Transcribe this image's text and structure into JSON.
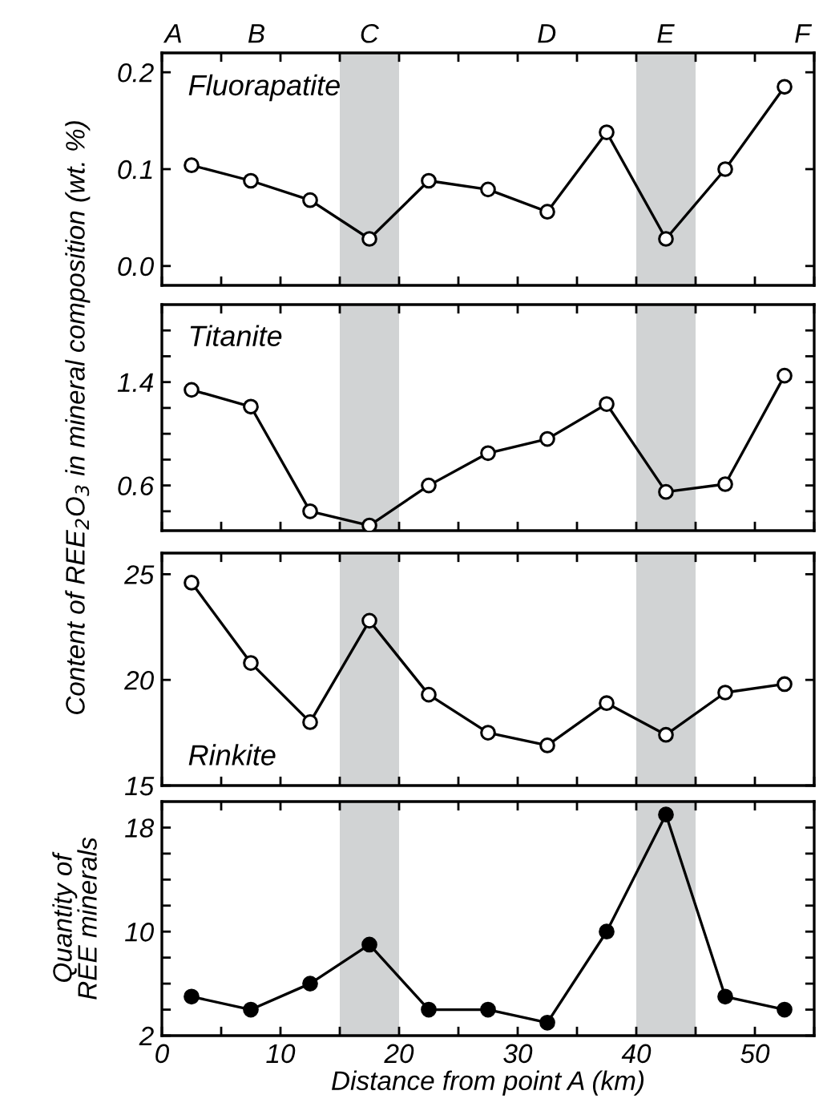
{
  "chart_data": [
    {
      "type": "line",
      "annotations": [
        "Fluorapatite",
        "A",
        "B",
        "C",
        "D",
        "E",
        "F"
      ],
      "x": [
        2.5,
        7.5,
        12.5,
        17.5,
        22.5,
        27.5,
        32.5,
        37.5,
        42.5,
        47.5,
        52.5
      ],
      "series": [
        {
          "color": "#000000",
          "colors": [
            "#ffffff",
            "#ffffff",
            "#ffffff",
            "#ffffff",
            "#ffffff",
            "#ffffff",
            "#ffffff",
            "#ffffff",
            "#ffffff",
            "#ffffff",
            "#ffffff"
          ],
          "values": [
            0.104,
            0.088,
            0.068,
            0.028,
            0.088,
            0.079,
            0.056,
            0.138,
            0.028,
            0.1,
            0.185
          ]
        }
      ],
      "marker": "circle",
      "xlim": [
        0,
        55
      ],
      "xticks": [
        0,
        5,
        10,
        15,
        20,
        25,
        30,
        35,
        40,
        45,
        50,
        55
      ],
      "ylim": [
        -0.02,
        0.22
      ],
      "yticks": [
        {
          "value": 0,
          "label": "0.0"
        },
        {
          "value": 0.1,
          "label": "0.1"
        },
        {
          "value": 0.2,
          "label": "0.2"
        }
      ],
      "bands": [
        {
          "axis": "x",
          "from": 15,
          "to": 20,
          "color": "#d1d3d4"
        },
        {
          "axis": "x",
          "from": 40,
          "to": 45,
          "color": "#d1d3d4"
        }
      ],
      "tick_labels": "y",
      "grid": false,
      "legend": false
    },
    {
      "type": "line",
      "annotations": [
        "Titanite"
      ],
      "ylabel": "Content of REE$_{2}$O$_{3}$ in mineral composition (wt. %)",
      "x": [
        2.5,
        7.5,
        12.5,
        17.5,
        22.5,
        27.5,
        32.5,
        37.5,
        42.5,
        47.5,
        52.5
      ],
      "series": [
        {
          "color": "#000000",
          "colors": [
            "#ffffff",
            "#ffffff",
            "#ffffff",
            "#ffffff",
            "#ffffff",
            "#ffffff",
            "#ffffff",
            "#ffffff",
            "#ffffff",
            "#ffffff",
            "#ffffff"
          ],
          "values": [
            1.34,
            1.21,
            0.4,
            0.29,
            0.6,
            0.85,
            0.96,
            1.23,
            0.55,
            0.61,
            1.45
          ]
        }
      ],
      "marker": "circle",
      "xlim": [
        0,
        55
      ],
      "xticks": [
        0,
        5,
        10,
        15,
        20,
        25,
        30,
        35,
        40,
        45,
        50,
        55
      ],
      "ylim": [
        0.25,
        2.0
      ],
      "yticks": [
        {
          "value": 0.4,
          "label": null
        },
        0.6,
        {
          "value": 0.8,
          "label": null
        },
        {
          "value": 1.0,
          "label": null
        },
        {
          "value": 1.2,
          "label": null
        },
        1.4,
        {
          "value": 1.6,
          "label": null
        },
        {
          "value": 1.8,
          "label": null
        }
      ],
      "bands": [
        {
          "axis": "x",
          "from": 15,
          "to": 20,
          "color": "#d1d3d4"
        },
        {
          "axis": "x",
          "from": 40,
          "to": 45,
          "color": "#d1d3d4"
        }
      ],
      "tick_labels": "y",
      "grid": false,
      "legend": false
    },
    {
      "type": "line",
      "annotations": [
        "Rinkite"
      ],
      "x": [
        2.5,
        7.5,
        12.5,
        17.5,
        22.5,
        27.5,
        32.5,
        37.5,
        42.5,
        47.5,
        52.5
      ],
      "series": [
        {
          "color": "#000000",
          "colors": [
            "#ffffff",
            "#ffffff",
            "#ffffff",
            "#ffffff",
            "#ffffff",
            "#ffffff",
            "#ffffff",
            "#ffffff",
            "#ffffff",
            "#ffffff",
            "#ffffff"
          ],
          "values": [
            24.6,
            20.8,
            18.0,
            22.8,
            19.3,
            17.5,
            16.9,
            18.9,
            17.4,
            19.4,
            19.8
          ]
        }
      ],
      "marker": "circle",
      "xlim": [
        0,
        55
      ],
      "xticks": [
        0,
        5,
        10,
        15,
        20,
        25,
        30,
        35,
        40,
        45,
        50,
        55
      ],
      "ylim": [
        15,
        26
      ],
      "yticks": [
        15,
        20,
        25
      ],
      "bands": [
        {
          "axis": "x",
          "from": 15,
          "to": 20,
          "color": "#d1d3d4"
        },
        {
          "axis": "x",
          "from": 40,
          "to": 45,
          "color": "#d1d3d4"
        }
      ],
      "tick_labels": "y",
      "grid": false,
      "legend": false
    },
    {
      "type": "line",
      "ylabel": "Quantity of\nREE minerals",
      "xlabel": "Distance from point A (km)",
      "x": [
        2.5,
        7.5,
        12.5,
        17.5,
        22.5,
        27.5,
        32.5,
        37.5,
        42.5,
        47.5,
        52.5
      ],
      "series": [
        {
          "color": "#000000",
          "colors": [
            "#000000",
            "#000000",
            "#000000",
            "#000000",
            "#000000",
            "#000000",
            "#000000",
            "#000000",
            "#000000",
            "#000000",
            "#000000"
          ],
          "values": [
            5,
            4,
            6,
            9,
            4,
            4,
            3,
            10,
            19,
            5,
            4
          ]
        }
      ],
      "marker": "circle",
      "xlim": [
        0,
        55
      ],
      "xticks": [
        0,
        {
          "value": 5,
          "label": null
        },
        10,
        {
          "value": 15,
          "label": null
        },
        20,
        {
          "value": 25,
          "label": null
        },
        30,
        {
          "value": 35,
          "label": null
        },
        40,
        {
          "value": 45,
          "label": null
        },
        50,
        {
          "value": 55,
          "label": null
        }
      ],
      "ylim": [
        2,
        20
      ],
      "yticks": [
        2,
        {
          "value": 4,
          "label": null
        },
        {
          "value": 6,
          "label": null
        },
        {
          "value": 8,
          "label": null
        },
        10,
        {
          "value": 12,
          "label": null
        },
        {
          "value": 14,
          "label": null
        },
        {
          "value": 16,
          "label": null
        },
        18
      ],
      "bands": [
        {
          "axis": "x",
          "from": 15,
          "to": 20,
          "color": "#d1d3d4"
        },
        {
          "axis": "x",
          "from": 40,
          "to": 45,
          "color": "#d1d3d4"
        }
      ],
      "grid": false,
      "legend": false
    }
  ]
}
